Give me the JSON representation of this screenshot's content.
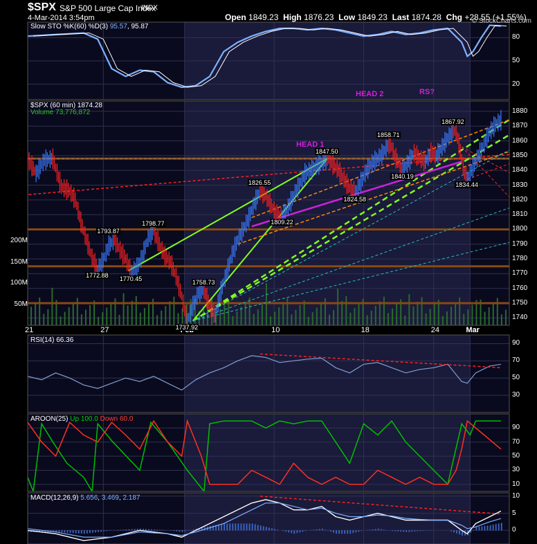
{
  "header": {
    "symbol": "$SPX",
    "name": "S&P 500 Large Cap Index",
    "exchange": "INDX",
    "datetime": "4-Mar-2014 3:54pm",
    "open_label": "Open",
    "open": "1849.23",
    "high_label": "High",
    "high": "1876.23",
    "low_label": "Low",
    "low": "1849.23",
    "last_label": "Last",
    "last": "1874.28",
    "chg_label": "Chg",
    "chg": "+28.55 (+1.55%)",
    "watermark": "© StockCharts.com"
  },
  "colors": {
    "background": "#000000",
    "panel_bg": "#0a0a1e",
    "highlight_bg": "#1a1a3a",
    "grid": "#303050",
    "price_up": "#3a7cff",
    "price_down": "#ff2020",
    "stoch_k": "#7fb2ff",
    "stoch_d": "#ffffff",
    "volume": "#2a6a2a",
    "aroon_up": "#00c000",
    "aroon_down": "#ff3020",
    "trend_green": "#80ff20",
    "trend_magenta": "#d020d8",
    "trend_orange": "#ff8800",
    "trend_red": "#ff2020",
    "trend_cyan": "#20c0c0",
    "support_brown": "#8a4a10"
  },
  "panels": {
    "sto": {
      "key": "Slow STO %K(60) %D(3)",
      "v1": "95.57",
      "v2": "95.87"
    },
    "price": {
      "key": "$SPX (60 min)",
      "v1": "1874.28",
      "vol_key": "Volume",
      "vol_val": "73,776,872"
    },
    "rsi": {
      "key": "RSI(14)",
      "v1": "66.36"
    },
    "aroon": {
      "key": "AROON(25)",
      "up_label": "Up",
      "up": "100.0",
      "down_label": "Down",
      "down": "60.0"
    },
    "macd": {
      "key": "MACD(12,26,9)",
      "v1": "5.656",
      "v2": "3.469",
      "v3": "2.187"
    }
  },
  "annotations": {
    "head1": "HEAD 1",
    "head2": "HEAD 2",
    "rs": "RS?"
  },
  "chart_data": {
    "type": "line",
    "title": "$SPX S&P 500 Large Cap Index",
    "x_ticks": [
      "21",
      "27",
      "Feb",
      "10",
      "18",
      "24",
      "Mar"
    ],
    "price": {
      "ylim": [
        1735,
        1887
      ],
      "y_ticks": [
        1740,
        1750,
        1760,
        1770,
        1780,
        1790,
        1800,
        1810,
        1820,
        1830,
        1840,
        1850,
        1860,
        1870,
        1880
      ],
      "path": [
        [
          0,
          1848
        ],
        [
          6,
          1838
        ],
        [
          12,
          1847
        ],
        [
          18,
          1848
        ],
        [
          24,
          1829
        ],
        [
          30,
          1826
        ],
        [
          34,
          1820
        ],
        [
          38,
          1805
        ],
        [
          42,
          1793
        ],
        [
          46,
          1781
        ],
        [
          50,
          1773
        ],
        [
          54,
          1779
        ],
        [
          58,
          1789
        ],
        [
          62,
          1793
        ],
        [
          66,
          1786
        ],
        [
          70,
          1780
        ],
        [
          74,
          1771
        ],
        [
          78,
          1774
        ],
        [
          82,
          1782
        ],
        [
          86,
          1794
        ],
        [
          90,
          1799
        ],
        [
          94,
          1790
        ],
        [
          98,
          1782
        ],
        [
          102,
          1778
        ],
        [
          106,
          1768
        ],
        [
          110,
          1755
        ],
        [
          112,
          1745
        ],
        [
          114,
          1738
        ],
        [
          118,
          1748
        ],
        [
          122,
          1757
        ],
        [
          126,
          1759
        ],
        [
          130,
          1748
        ],
        [
          134,
          1742
        ],
        [
          138,
          1758
        ],
        [
          142,
          1770
        ],
        [
          146,
          1783
        ],
        [
          150,
          1793
        ],
        [
          154,
          1800
        ],
        [
          158,
          1808
        ],
        [
          162,
          1818
        ],
        [
          166,
          1826
        ],
        [
          170,
          1823
        ],
        [
          174,
          1816
        ],
        [
          178,
          1810
        ],
        [
          182,
          1809
        ],
        [
          186,
          1815
        ],
        [
          190,
          1823
        ],
        [
          194,
          1830
        ],
        [
          198,
          1838
        ],
        [
          202,
          1840
        ],
        [
          206,
          1843
        ],
        [
          210,
          1845
        ],
        [
          214,
          1848
        ],
        [
          216,
          1847
        ],
        [
          218,
          1844
        ],
        [
          222,
          1840
        ],
        [
          226,
          1834
        ],
        [
          230,
          1828
        ],
        [
          234,
          1825
        ],
        [
          238,
          1832
        ],
        [
          242,
          1840
        ],
        [
          246,
          1845
        ],
        [
          250,
          1848
        ],
        [
          254,
          1852
        ],
        [
          258,
          1858
        ],
        [
          260,
          1856
        ],
        [
          262,
          1850
        ],
        [
          266,
          1843
        ],
        [
          268,
          1840
        ],
        [
          272,
          1846
        ],
        [
          276,
          1852
        ],
        [
          280,
          1848
        ],
        [
          284,
          1846
        ],
        [
          288,
          1852
        ],
        [
          292,
          1850
        ],
        [
          296,
          1856
        ],
        [
          300,
          1862
        ],
        [
          304,
          1867
        ],
        [
          306,
          1866
        ],
        [
          308,
          1858
        ],
        [
          310,
          1848
        ],
        [
          312,
          1838
        ],
        [
          314,
          1834
        ],
        [
          318,
          1842
        ],
        [
          322,
          1850
        ],
        [
          326,
          1858
        ],
        [
          330,
          1866
        ],
        [
          334,
          1871
        ],
        [
          338,
          1874
        ]
      ],
      "callouts": [
        {
          "x": 50,
          "v": "1772.88"
        },
        {
          "x": 58,
          "v": "1793.87"
        },
        {
          "x": 74,
          "v": "1770.45"
        },
        {
          "x": 90,
          "v": "1798.77"
        },
        {
          "x": 114,
          "v": "1737.92"
        },
        {
          "x": 126,
          "v": "1758.73"
        },
        {
          "x": 166,
          "v": "1826.55"
        },
        {
          "x": 182,
          "v": "1809.22"
        },
        {
          "x": 214,
          "v": "1847.50"
        },
        {
          "x": 234,
          "v": "1824.58"
        },
        {
          "x": 258,
          "v": "1858.71"
        },
        {
          "x": 268,
          "v": "1840.19"
        },
        {
          "x": 304,
          "v": "1867.92"
        },
        {
          "x": 314,
          "v": "1834.44"
        }
      ]
    },
    "volume": {
      "ylim": [
        0,
        230
      ],
      "y_ticks": [
        "50M",
        "100M",
        "150M",
        "200M"
      ]
    },
    "sto": {
      "ylim": [
        0,
        100
      ],
      "y_ticks": [
        20,
        50,
        80
      ],
      "k": [
        [
          0,
          82
        ],
        [
          20,
          84
        ],
        [
          40,
          86
        ],
        [
          50,
          78
        ],
        [
          60,
          40
        ],
        [
          70,
          30
        ],
        [
          80,
          38
        ],
        [
          90,
          36
        ],
        [
          100,
          22
        ],
        [
          110,
          16
        ],
        [
          120,
          18
        ],
        [
          130,
          30
        ],
        [
          140,
          62
        ],
        [
          150,
          74
        ],
        [
          160,
          82
        ],
        [
          170,
          88
        ],
        [
          180,
          92
        ],
        [
          190,
          92
        ],
        [
          200,
          90
        ],
        [
          210,
          92
        ],
        [
          220,
          90
        ],
        [
          230,
          86
        ],
        [
          240,
          82
        ],
        [
          250,
          84
        ],
        [
          260,
          88
        ],
        [
          270,
          84
        ],
        [
          280,
          86
        ],
        [
          290,
          90
        ],
        [
          300,
          92
        ],
        [
          310,
          74
        ],
        [
          314,
          56
        ],
        [
          318,
          62
        ],
        [
          324,
          80
        ],
        [
          330,
          96
        ],
        [
          338,
          95
        ]
      ]
    },
    "rsi": {
      "ylim": [
        10,
        100
      ],
      "y_ticks": [
        30,
        50,
        70,
        90
      ],
      "v": [
        [
          0,
          52
        ],
        [
          10,
          48
        ],
        [
          20,
          56
        ],
        [
          30,
          50
        ],
        [
          40,
          42
        ],
        [
          50,
          38
        ],
        [
          60,
          44
        ],
        [
          70,
          50
        ],
        [
          80,
          46
        ],
        [
          90,
          52
        ],
        [
          100,
          44
        ],
        [
          110,
          36
        ],
        [
          120,
          48
        ],
        [
          130,
          56
        ],
        [
          140,
          62
        ],
        [
          150,
          70
        ],
        [
          160,
          76
        ],
        [
          170,
          74
        ],
        [
          180,
          68
        ],
        [
          190,
          70
        ],
        [
          200,
          72
        ],
        [
          210,
          73
        ],
        [
          220,
          62
        ],
        [
          230,
          56
        ],
        [
          240,
          66
        ],
        [
          250,
          68
        ],
        [
          260,
          62
        ],
        [
          270,
          56
        ],
        [
          280,
          60
        ],
        [
          290,
          62
        ],
        [
          300,
          66
        ],
        [
          310,
          46
        ],
        [
          314,
          44
        ],
        [
          320,
          56
        ],
        [
          330,
          64
        ],
        [
          338,
          66
        ]
      ]
    },
    "aroon": {
      "ylim": [
        0,
        110
      ],
      "y_ticks": [
        10,
        30,
        50,
        70,
        90
      ],
      "up": [
        [
          0,
          20
        ],
        [
          4,
          0
        ],
        [
          10,
          96
        ],
        [
          18,
          70
        ],
        [
          28,
          40
        ],
        [
          40,
          20
        ],
        [
          46,
          0
        ],
        [
          50,
          96
        ],
        [
          60,
          72
        ],
        [
          80,
          30
        ],
        [
          88,
          98
        ],
        [
          100,
          70
        ],
        [
          114,
          30
        ],
        [
          126,
          0
        ],
        [
          130,
          96
        ],
        [
          140,
          100
        ],
        [
          160,
          100
        ],
        [
          170,
          90
        ],
        [
          180,
          100
        ],
        [
          190,
          96
        ],
        [
          200,
          100
        ],
        [
          210,
          100
        ],
        [
          220,
          70
        ],
        [
          230,
          40
        ],
        [
          240,
          96
        ],
        [
          250,
          80
        ],
        [
          260,
          100
        ],
        [
          270,
          70
        ],
        [
          280,
          50
        ],
        [
          290,
          30
        ],
        [
          300,
          10
        ],
        [
          310,
          96
        ],
        [
          316,
          80
        ],
        [
          320,
          100
        ],
        [
          338,
          100
        ]
      ],
      "down": [
        [
          0,
          98
        ],
        [
          10,
          70
        ],
        [
          20,
          50
        ],
        [
          30,
          98
        ],
        [
          40,
          80
        ],
        [
          50,
          70
        ],
        [
          60,
          98
        ],
        [
          70,
          80
        ],
        [
          80,
          60
        ],
        [
          90,
          100
        ],
        [
          100,
          70
        ],
        [
          110,
          50
        ],
        [
          114,
          100
        ],
        [
          124,
          50
        ],
        [
          130,
          10
        ],
        [
          140,
          10
        ],
        [
          150,
          10
        ],
        [
          160,
          30
        ],
        [
          170,
          20
        ],
        [
          180,
          10
        ],
        [
          190,
          40
        ],
        [
          200,
          20
        ],
        [
          210,
          10
        ],
        [
          220,
          20
        ],
        [
          230,
          10
        ],
        [
          240,
          10
        ],
        [
          250,
          30
        ],
        [
          260,
          20
        ],
        [
          270,
          10
        ],
        [
          280,
          20
        ],
        [
          290,
          10
        ],
        [
          300,
          10
        ],
        [
          306,
          30
        ],
        [
          310,
          60
        ],
        [
          314,
          100
        ],
        [
          326,
          80
        ],
        [
          338,
          60
        ]
      ]
    },
    "macd": {
      "ylim": [
        -4,
        11
      ],
      "y_ticks": [
        0,
        5,
        10
      ],
      "macd": [
        [
          0,
          0
        ],
        [
          20,
          -1
        ],
        [
          40,
          -3
        ],
        [
          60,
          -2
        ],
        [
          80,
          0
        ],
        [
          100,
          -1
        ],
        [
          110,
          -2
        ],
        [
          120,
          0
        ],
        [
          140,
          4
        ],
        [
          160,
          8
        ],
        [
          170,
          9
        ],
        [
          180,
          8
        ],
        [
          190,
          6
        ],
        [
          200,
          6
        ],
        [
          210,
          7
        ],
        [
          220,
          4
        ],
        [
          230,
          3
        ],
        [
          240,
          4
        ],
        [
          250,
          5
        ],
        [
          260,
          4
        ],
        [
          270,
          3
        ],
        [
          280,
          3
        ],
        [
          290,
          3
        ],
        [
          300,
          3
        ],
        [
          310,
          0
        ],
        [
          314,
          -1
        ],
        [
          320,
          2
        ],
        [
          330,
          4
        ],
        [
          338,
          5.656
        ]
      ],
      "signal": [
        [
          0,
          0.5
        ],
        [
          20,
          -0.5
        ],
        [
          40,
          -2
        ],
        [
          60,
          -2
        ],
        [
          80,
          -0.5
        ],
        [
          100,
          -1
        ],
        [
          110,
          -1.5
        ],
        [
          120,
          -0.5
        ],
        [
          140,
          2
        ],
        [
          160,
          6
        ],
        [
          170,
          8
        ],
        [
          180,
          8
        ],
        [
          190,
          7
        ],
        [
          200,
          6
        ],
        [
          210,
          6.5
        ],
        [
          220,
          5
        ],
        [
          230,
          4
        ],
        [
          240,
          4
        ],
        [
          250,
          4.5
        ],
        [
          260,
          4.2
        ],
        [
          270,
          3.5
        ],
        [
          280,
          3.2
        ],
        [
          290,
          3
        ],
        [
          300,
          3
        ],
        [
          310,
          1.5
        ],
        [
          314,
          0.5
        ],
        [
          320,
          1
        ],
        [
          330,
          2.5
        ],
        [
          338,
          3.469
        ]
      ]
    }
  }
}
